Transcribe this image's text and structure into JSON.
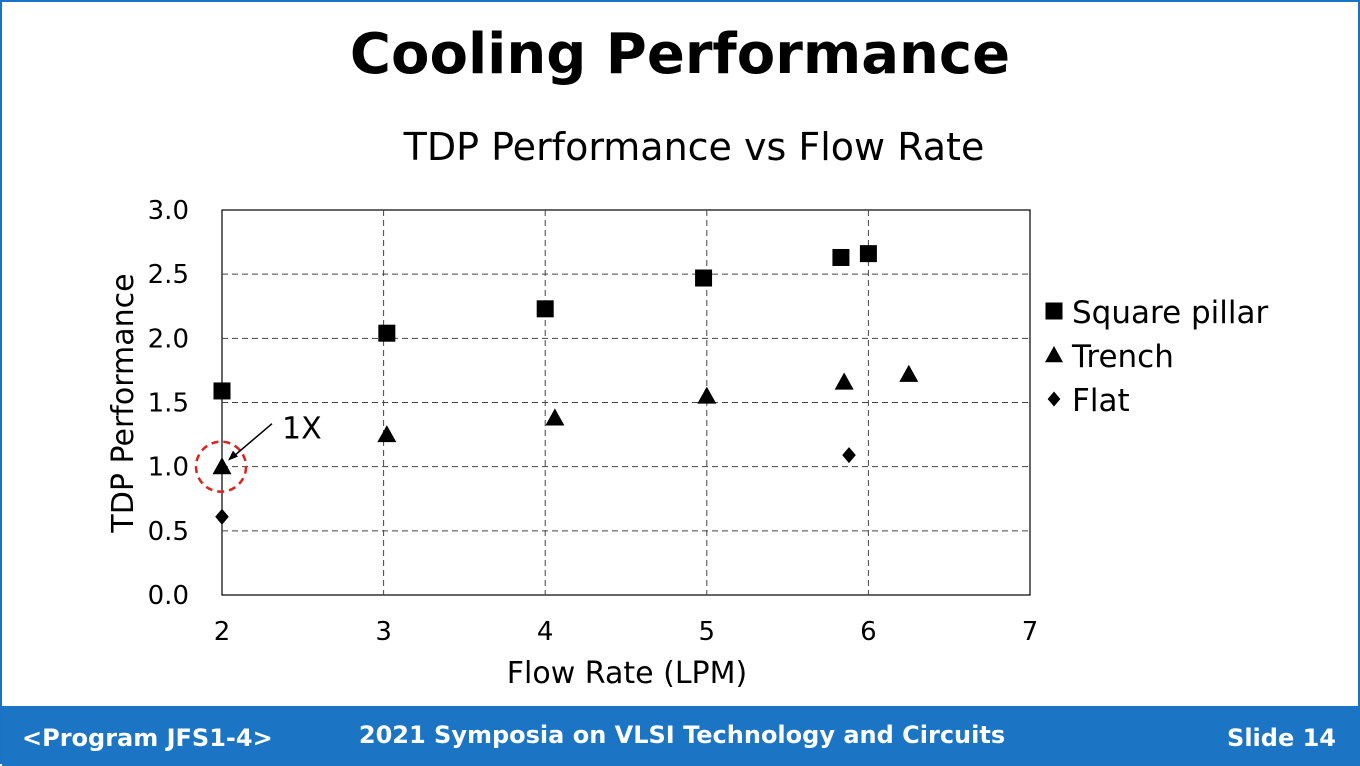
{
  "slide": {
    "title": "Cooling Performance"
  },
  "footer": {
    "left": "<Program JFS1-4>",
    "center": "2021 Symposia on VLSI Technology and Circuits",
    "right": "Slide 14"
  },
  "colors": {
    "footer_bg": "#1b74c4",
    "marker": "#000000",
    "highlight_circle": "#d9231f"
  },
  "chart_data": {
    "type": "scatter",
    "title": "TDP Performance vs Flow Rate",
    "xlabel": "Flow Rate (LPM)",
    "ylabel": "TDP Performance",
    "xlim": [
      2,
      7
    ],
    "ylim": [
      0,
      3.0
    ],
    "xticks": [
      "2",
      "3",
      "4",
      "5",
      "6",
      "7"
    ],
    "yticks": [
      "0.0",
      "0.5",
      "1.0",
      "1.5",
      "2.0",
      "2.5",
      "3.0"
    ],
    "grid": "dashed",
    "legend_position": "right",
    "series": [
      {
        "name": "Square pillar",
        "marker": "square",
        "points": [
          [
            2.0,
            1.59
          ],
          [
            3.02,
            2.04
          ],
          [
            4.0,
            2.23
          ],
          [
            4.98,
            2.47
          ],
          [
            5.83,
            2.63
          ],
          [
            6.0,
            2.66
          ]
        ]
      },
      {
        "name": "Trench",
        "marker": "triangle",
        "points": [
          [
            2.0,
            1.0
          ],
          [
            3.02,
            1.25
          ],
          [
            4.06,
            1.38
          ],
          [
            5.0,
            1.55
          ],
          [
            5.85,
            1.66
          ],
          [
            6.25,
            1.72
          ]
        ]
      },
      {
        "name": "Flat",
        "marker": "diamond",
        "points": [
          [
            2.0,
            0.61
          ],
          [
            5.88,
            1.09
          ]
        ]
      }
    ],
    "annotation": {
      "text": "1X",
      "x": 2.0,
      "y": 1.0
    }
  }
}
